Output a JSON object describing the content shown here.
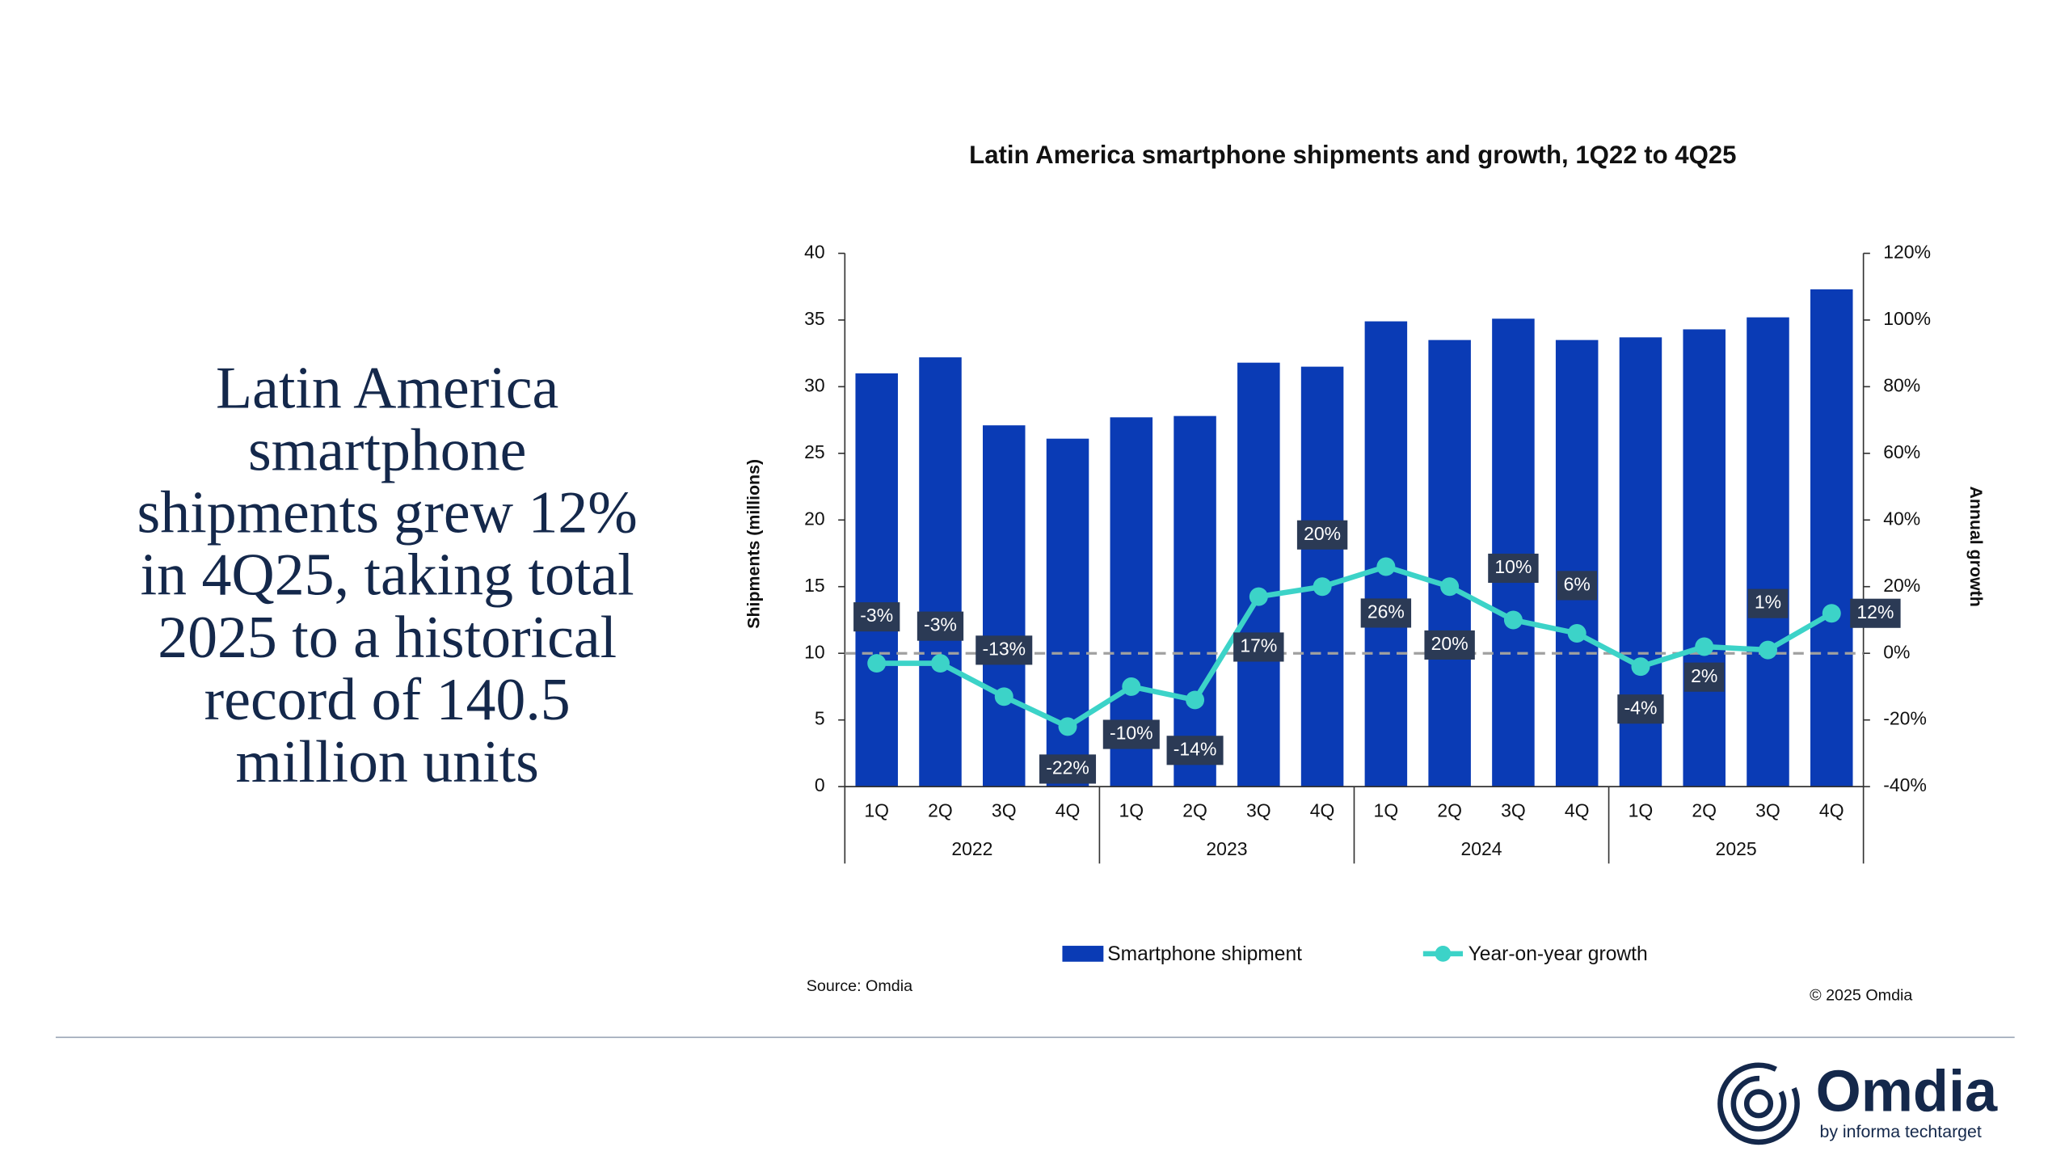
{
  "headline": [
    "Latin America",
    "smartphone",
    "shipments grew 12%",
    "in 4Q25, taking total",
    "2025 to a historical",
    "record of 140.5",
    "million units"
  ],
  "chart_data": {
    "type": "bar-line",
    "title": "Latin America smartphone shipments and growth, 1Q22 to 4Q25",
    "y_label": "Shipments (millions)",
    "y2_label": "Annual growth",
    "categories": [
      "1Q",
      "2Q",
      "3Q",
      "4Q",
      "1Q",
      "2Q",
      "3Q",
      "4Q",
      "1Q",
      "2Q",
      "3Q",
      "4Q",
      "1Q",
      "2Q",
      "3Q",
      "4Q"
    ],
    "year_groups": [
      "2022",
      "2023",
      "2024",
      "2025"
    ],
    "series": [
      {
        "name": "Smartphone shipment",
        "type": "bar",
        "color": "#0a3bb5",
        "values": [
          31.0,
          32.2,
          27.1,
          26.1,
          27.7,
          27.8,
          31.8,
          31.5,
          34.9,
          33.5,
          35.1,
          33.5,
          33.7,
          34.3,
          35.2,
          37.3
        ]
      },
      {
        "name": "Year-on-year growth",
        "type": "line",
        "axis": "y2",
        "color": "#3cd3c8",
        "values": [
          -3,
          -3,
          -13,
          -22,
          -10,
          -14,
          17,
          20,
          26,
          20,
          10,
          6,
          -4,
          2,
          1,
          12
        ],
        "value_labels": [
          "-3%",
          "-3%",
          "-13%",
          "-22%",
          "-10%",
          "-14%",
          "17%",
          "20%",
          "26%",
          "20%",
          "10%",
          "6%",
          "-4%",
          "2%",
          "1%",
          "12%"
        ]
      }
    ],
    "ylim": [
      0,
      40
    ],
    "yticks": [
      0,
      5,
      10,
      15,
      20,
      25,
      30,
      35,
      40
    ],
    "y2lim": [
      -40,
      120
    ],
    "y2ticks": [
      {
        "value": -40,
        "label": "-40%"
      },
      {
        "value": -20,
        "label": "-20%"
      },
      {
        "value": 0,
        "label": "0%"
      },
      {
        "value": 20,
        "label": "20%"
      },
      {
        "value": 40,
        "label": "40%"
      },
      {
        "value": 60,
        "label": "60%"
      },
      {
        "value": 80,
        "label": "80%"
      },
      {
        "value": 100,
        "label": "100%"
      },
      {
        "value": 120,
        "label": "120%"
      }
    ],
    "source": "Source: Omdia",
    "copyright": "© 2025 Omdia"
  },
  "logo": {
    "name": "Omdia",
    "tagline": "by informa techtarget"
  }
}
